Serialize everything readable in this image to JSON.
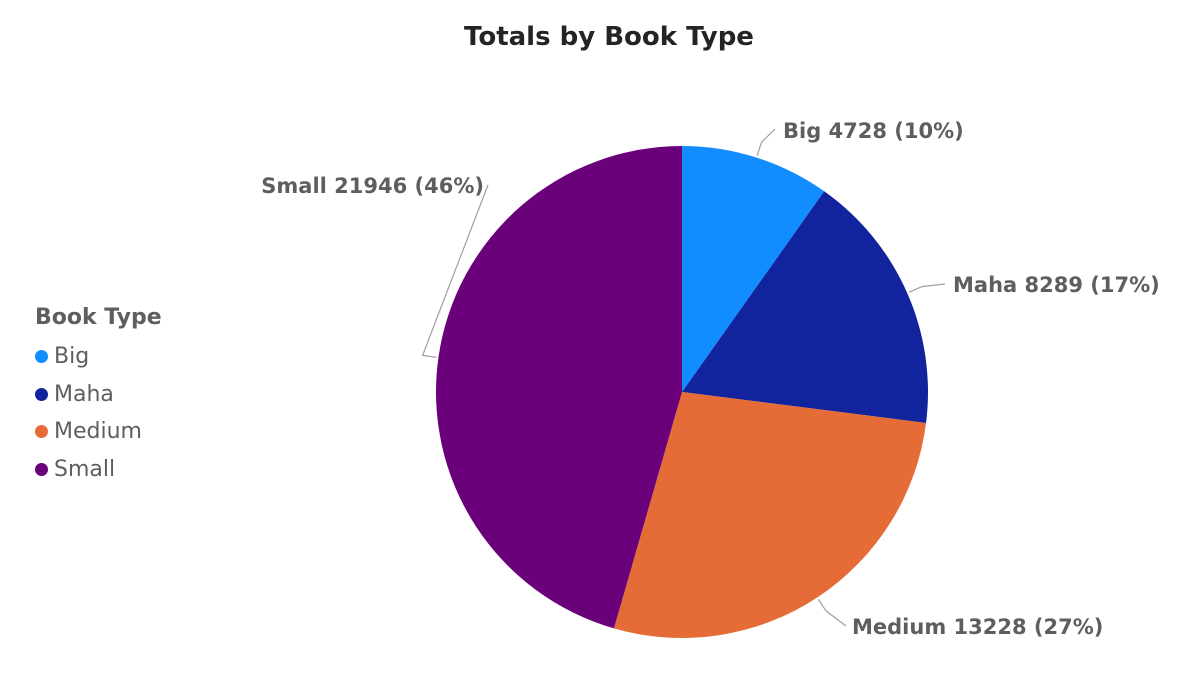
{
  "chart_data": {
    "type": "pie",
    "title": "Totals by Book Type",
    "legend_title": "Book Type",
    "legend_position": "left",
    "slices": [
      {
        "label": "Big",
        "value": 4728,
        "percent_label": "(10%)",
        "color": "#118dff"
      },
      {
        "label": "Maha",
        "value": 8289,
        "percent_label": "(17%)",
        "color": "#12239e"
      },
      {
        "label": "Medium",
        "value": 13228,
        "percent_label": "(27%)",
        "color": "#e66c37"
      },
      {
        "label": "Small",
        "value": 21946,
        "percent_label": "(46%)",
        "color": "#6b007b"
      }
    ]
  }
}
